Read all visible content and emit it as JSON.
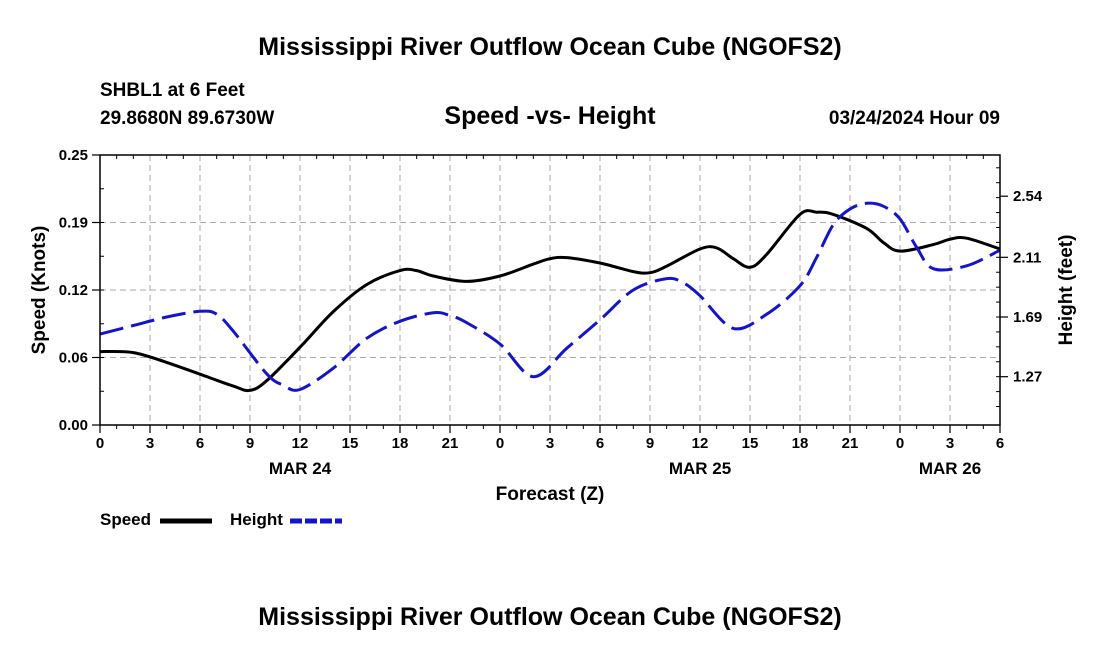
{
  "chart_data": {
    "type": "line",
    "title": "Mississippi River Outflow Ocean Cube (NGOFS2)",
    "footer_title": "Mississippi River Outflow Ocean Cube (NGOFS2)",
    "station": "SHBL1 at 6 Feet",
    "location": "29.8680N  89.6730W",
    "subtitle": "Speed -vs- Height",
    "datetime": "03/24/2024 Hour 09",
    "xlabel": "Forecast (Z)",
    "ylabel_left": "Speed (Knots)",
    "ylabel_right": "Height (feet)",
    "x_range": [
      0,
      54
    ],
    "y_left_range": [
      0,
      0.25
    ],
    "y_right_range": [
      0.93,
      2.83
    ],
    "x_ticks": [
      {
        "x": 0,
        "label": "0"
      },
      {
        "x": 3,
        "label": "3"
      },
      {
        "x": 6,
        "label": "6"
      },
      {
        "x": 9,
        "label": "9"
      },
      {
        "x": 12,
        "label": "12"
      },
      {
        "x": 15,
        "label": "15"
      },
      {
        "x": 18,
        "label": "18"
      },
      {
        "x": 21,
        "label": "21"
      },
      {
        "x": 24,
        "label": "0"
      },
      {
        "x": 27,
        "label": "3"
      },
      {
        "x": 30,
        "label": "6"
      },
      {
        "x": 33,
        "label": "9"
      },
      {
        "x": 36,
        "label": "12"
      },
      {
        "x": 39,
        "label": "15"
      },
      {
        "x": 42,
        "label": "18"
      },
      {
        "x": 45,
        "label": "21"
      },
      {
        "x": 48,
        "label": "0"
      },
      {
        "x": 51,
        "label": "3"
      },
      {
        "x": 54,
        "label": "6"
      }
    ],
    "date_labels": [
      {
        "x": 12,
        "label": "MAR 24"
      },
      {
        "x": 36,
        "label": "MAR 25"
      },
      {
        "x": 51,
        "label": "MAR 26"
      }
    ],
    "y_left_ticks": [
      {
        "y": 0.0,
        "label": "0.00"
      },
      {
        "y": 0.0625,
        "label": "0.06"
      },
      {
        "y": 0.125,
        "label": "0.12"
      },
      {
        "y": 0.1875,
        "label": "0.19"
      },
      {
        "y": 0.25,
        "label": "0.25"
      }
    ],
    "y_right_ticks": [
      {
        "y": 1.27,
        "label": "1.27"
      },
      {
        "y": 1.69,
        "label": "1.69"
      },
      {
        "y": 2.11,
        "label": "2.11"
      },
      {
        "y": 2.54,
        "label": "2.54"
      }
    ],
    "series": [
      {
        "name": "Speed",
        "axis": "left",
        "color": "#000000",
        "dash": "solid",
        "x": [
          0,
          2,
          4,
          6,
          8,
          9,
          10,
          12,
          14,
          16,
          18,
          19,
          20,
          22,
          24,
          26,
          27,
          28,
          30,
          32,
          33,
          34,
          36,
          37,
          38,
          39,
          40,
          42,
          43,
          44,
          46,
          47,
          48,
          50,
          51,
          52,
          54
        ],
        "values": [
          0.068,
          0.067,
          0.058,
          0.047,
          0.036,
          0.032,
          0.041,
          0.072,
          0.105,
          0.13,
          0.143,
          0.143,
          0.138,
          0.133,
          0.138,
          0.149,
          0.154,
          0.155,
          0.15,
          0.142,
          0.141,
          0.147,
          0.163,
          0.164,
          0.154,
          0.146,
          0.158,
          0.195,
          0.197,
          0.195,
          0.182,
          0.169,
          0.161,
          0.167,
          0.172,
          0.173,
          0.163
        ]
      },
      {
        "name": "Height",
        "axis": "right",
        "color": "#1414c8",
        "dash": "dashed",
        "x": [
          0,
          2,
          4,
          6,
          7,
          8,
          10,
          11,
          12,
          14,
          16,
          18,
          20,
          21,
          22,
          24,
          26,
          28,
          30,
          32,
          34,
          35,
          36,
          38,
          40,
          42,
          43,
          44,
          45,
          46,
          47,
          48,
          49,
          50,
          52,
          54
        ],
        "values": [
          1.57,
          1.63,
          1.69,
          1.73,
          1.71,
          1.59,
          1.29,
          1.21,
          1.18,
          1.33,
          1.54,
          1.66,
          1.72,
          1.7,
          1.65,
          1.5,
          1.27,
          1.47,
          1.67,
          1.88,
          1.96,
          1.93,
          1.84,
          1.61,
          1.71,
          1.91,
          2.11,
          2.34,
          2.45,
          2.49,
          2.47,
          2.38,
          2.18,
          2.03,
          2.05,
          2.16
        ]
      }
    ],
    "legend": [
      {
        "name": "Speed",
        "label": "Speed"
      },
      {
        "name": "Height",
        "label": "Height"
      }
    ],
    "grid": true
  }
}
